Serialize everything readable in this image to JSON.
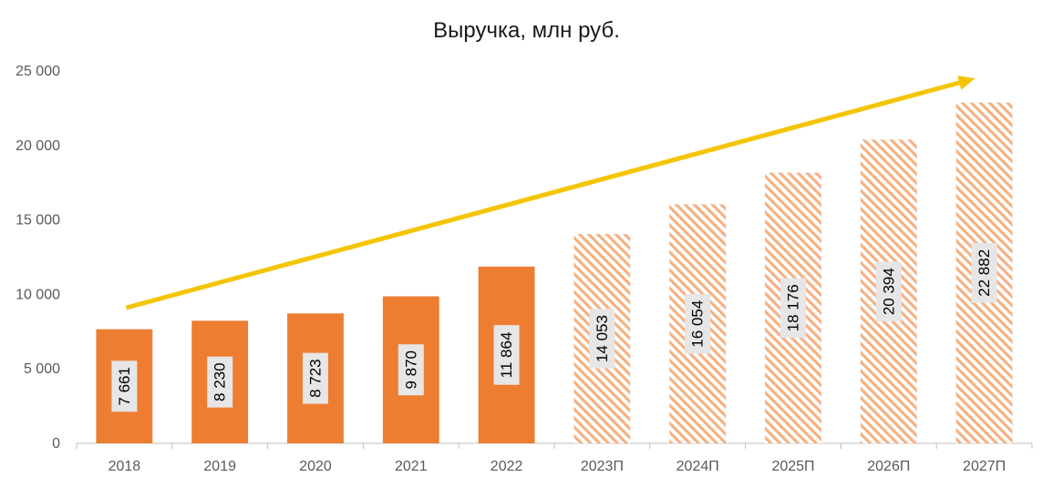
{
  "chart_data": {
    "type": "bar",
    "title": "Выручка, млн руб.",
    "xlabel": "",
    "ylabel": "",
    "categories": [
      "2018",
      "2019",
      "2020",
      "2021",
      "2022",
      "2023П",
      "2024П",
      "2025П",
      "2026П",
      "2027П"
    ],
    "values": [
      7661,
      8230,
      8723,
      9870,
      11864,
      14053,
      16054,
      18176,
      20394,
      22882
    ],
    "value_labels": [
      "7 661",
      "8 230",
      "8 723",
      "9 870",
      "11 864",
      "14 053",
      "16 054",
      "18 176",
      "20 394",
      "22 882"
    ],
    "forecast": [
      false,
      false,
      false,
      false,
      false,
      true,
      true,
      true,
      true,
      true
    ],
    "ylim": [
      0,
      25000
    ],
    "yticks": [
      0,
      5000,
      10000,
      15000,
      20000,
      25000
    ],
    "ytick_labels": [
      "0",
      "5 000",
      "10 000",
      "15 000",
      "20 000",
      "25 000"
    ],
    "grid": false,
    "legend": "none",
    "trend_arrow": {
      "from_category": "2018",
      "to_category": "2027П",
      "from_value": 9100,
      "to_value": 24500
    },
    "colors": {
      "actual": "#ED7D31",
      "forecast": "#F4B183",
      "arrow": "#F5C400",
      "axis": "#BFBFBF",
      "label_bg": "#E7E6E6",
      "text": "#595959"
    }
  }
}
